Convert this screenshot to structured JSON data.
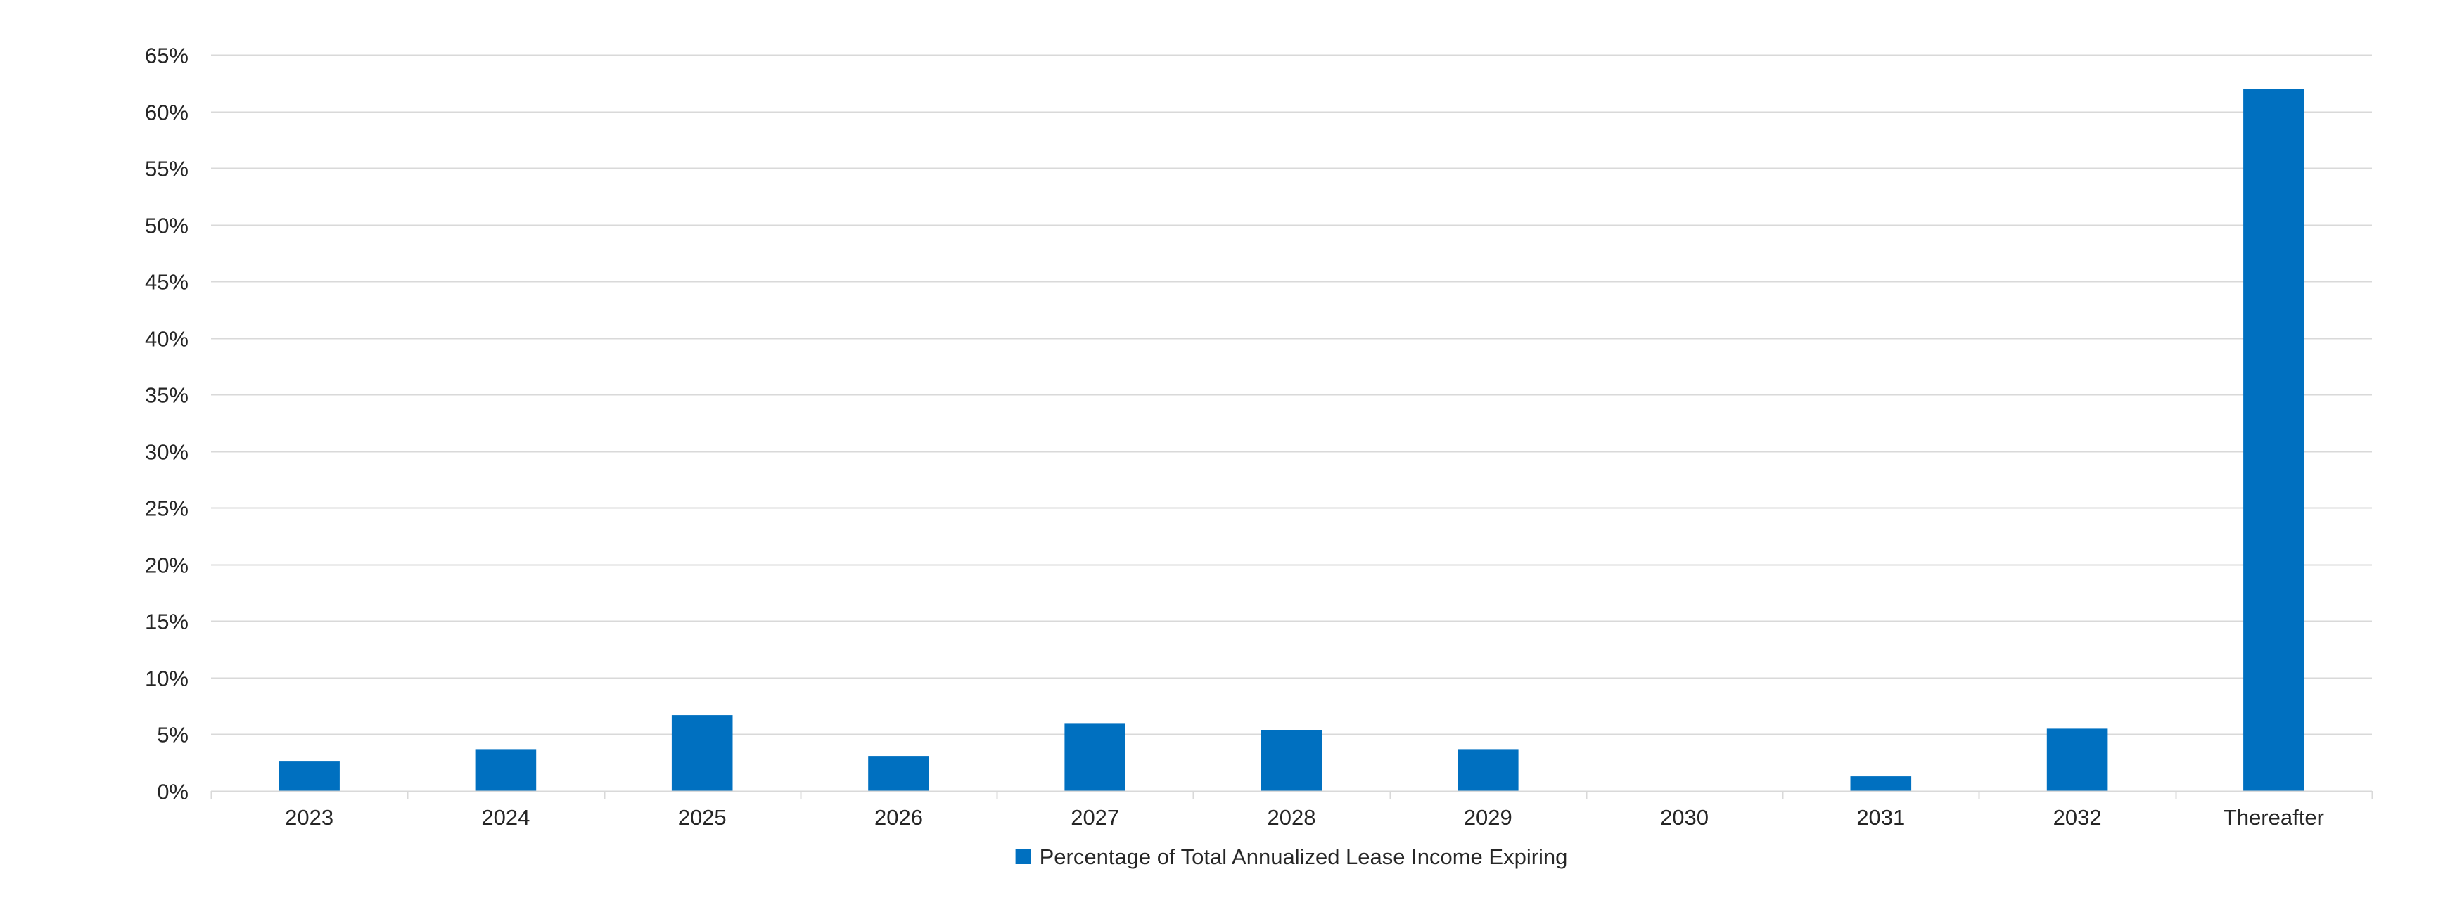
{
  "chart_data": {
    "type": "bar",
    "title": "",
    "xlabel": "",
    "ylabel": "",
    "categories": [
      "2023",
      "2024",
      "2025",
      "2026",
      "2027",
      "2028",
      "2029",
      "2030",
      "2031",
      "2032",
      "Thereafter"
    ],
    "series": [
      {
        "name": "Percentage of Total Annualized Lease Income Expiring",
        "values": [
          2.6,
          3.7,
          6.7,
          3.1,
          6.0,
          5.4,
          3.7,
          0.0,
          1.3,
          5.5,
          62.0
        ]
      }
    ],
    "ylim": [
      0,
      65
    ],
    "yticks": [
      0,
      5,
      10,
      15,
      20,
      25,
      30,
      35,
      40,
      45,
      50,
      55,
      60,
      65
    ],
    "ytick_format": "percent",
    "grid": true,
    "legend_position": "bottom",
    "colors": {
      "bar": "#0070C0",
      "grid": "#D9D9D9",
      "axis": "#D9D9D9",
      "text": "#262626"
    }
  }
}
